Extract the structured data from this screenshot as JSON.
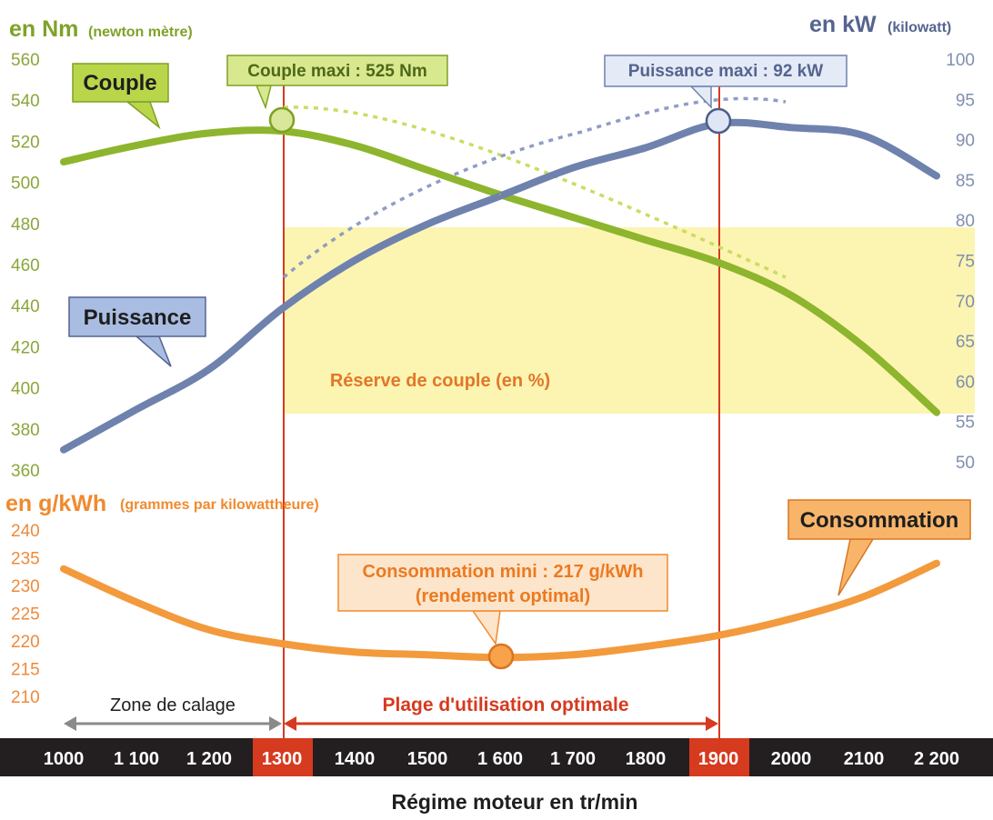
{
  "axes": {
    "nm_unit": "en Nm",
    "nm_desc": "(newton mètre)",
    "kw_unit": "en kW",
    "kw_desc": "(kilowatt)",
    "g_unit": "en g/kWh",
    "g_desc": "(grammes par kilowattheure)",
    "x_title": "Régime moteur en tr/min",
    "nm_ticks": [
      "560",
      "540",
      "520",
      "500",
      "480",
      "460",
      "440",
      "420",
      "400",
      "380",
      "360"
    ],
    "kw_ticks": [
      "100",
      "95",
      "90",
      "85",
      "80",
      "75",
      "70",
      "65",
      "60",
      "55",
      "50"
    ],
    "g_ticks": [
      "240",
      "235",
      "230",
      "225",
      "220",
      "215",
      "210"
    ],
    "x_ticks": [
      "1000",
      "1 100",
      "1 200",
      "1300",
      "1400",
      "1500",
      "1 600",
      "1 700",
      "1800",
      "1900",
      "2000",
      "2100",
      "2 200"
    ]
  },
  "labels": {
    "couple": "Couple",
    "puissance": "Puissance",
    "consommation": "Consommation",
    "couple_maxi": "Couple maxi : 525 Nm",
    "puissance_maxi": "Puissance maxi : 92 kW",
    "conso_mini_line1": "Consommation mini : 217 g/kWh",
    "conso_mini_line2": "(rendement optimal)",
    "reserve": "Réserve de couple (en %)",
    "zone_calage": "Zone de calage",
    "plage_optimale": "Plage d'utilisation optimale"
  },
  "colors": {
    "couple": "#8db52d",
    "puissance": "#6e82ad",
    "consommation": "#f39a3d",
    "highlight": "#d63a1f",
    "reserve_fill": "#fbf2a3",
    "axis_bar": "#231f20"
  },
  "chart_data": {
    "type": "line",
    "x_unit": "tr/min",
    "x_range": [
      1000,
      2200
    ],
    "highlighted_x": [
      1300,
      1900
    ],
    "series": [
      {
        "name": "Couple",
        "unit": "Nm",
        "ylim": [
          360,
          560
        ],
        "x": [
          1000,
          1100,
          1200,
          1300,
          1400,
          1500,
          1600,
          1700,
          1800,
          1900,
          2000,
          2100,
          2200
        ],
        "values": [
          510,
          518,
          524,
          525,
          518,
          506,
          494,
          483,
          472,
          461,
          445,
          420,
          388
        ]
      },
      {
        "name": "Puissance",
        "unit": "kW",
        "ylim": [
          50,
          100
        ],
        "x": [
          1000,
          1100,
          1200,
          1300,
          1400,
          1500,
          1600,
          1700,
          1800,
          1900,
          2000,
          2100,
          2200
        ],
        "values": [
          51.5,
          56.5,
          61.5,
          69,
          75,
          79.5,
          83,
          86.5,
          89,
          92,
          91.5,
          90.5,
          85.5
        ]
      },
      {
        "name": "Consommation",
        "unit": "g/kWh",
        "ylim": [
          207,
          242
        ],
        "x": [
          1000,
          1100,
          1200,
          1300,
          1400,
          1500,
          1600,
          1700,
          1800,
          1900,
          2000,
          2100,
          2200
        ],
        "values": [
          233,
          227,
          222,
          219.5,
          218,
          217.5,
          217,
          217.5,
          219,
          221,
          224,
          228,
          234
        ]
      }
    ],
    "annotations": [
      {
        "text": "Couple maxi : 525 Nm",
        "x": 1300,
        "y": 525,
        "unit": "Nm"
      },
      {
        "text": "Puissance maxi : 92 kW",
        "x": 1900,
        "y": 92,
        "unit": "kW"
      },
      {
        "text": "Consommation mini : 217 g/kWh",
        "x": 1600,
        "y": 217,
        "unit": "g/kWh"
      }
    ],
    "ranges": [
      {
        "text": "Zone de calage",
        "from": 1000,
        "to": 1300
      },
      {
        "text": "Plage d'utilisation optimale",
        "from": 1300,
        "to": 1900
      }
    ]
  }
}
